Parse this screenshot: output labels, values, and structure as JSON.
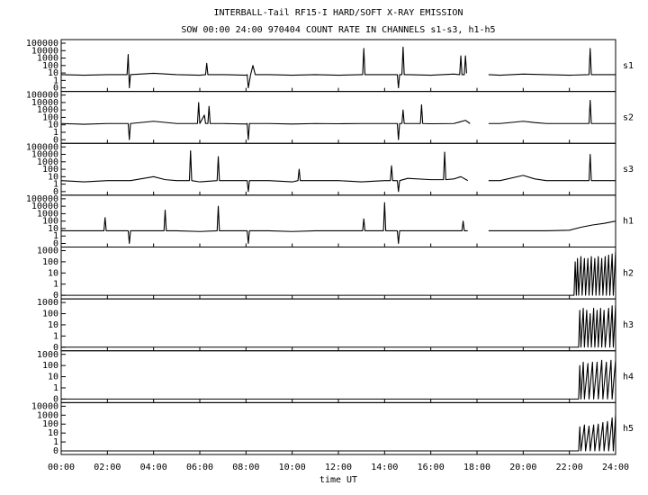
{
  "chart_data": {
    "type": "line",
    "title": "INTERBALL-Tail RF15-I HARD/SOFT X-RAY EMISSION",
    "subtitle": "SOW 00:00 24:00 970404  COUNT RATE IN CHANNELS s1-s3, h1-h5",
    "x_label": "time UT",
    "xlim": [
      0,
      24
    ],
    "xticks": [
      {
        "value": 0,
        "label": "00:00"
      },
      {
        "value": 2,
        "label": "02:00"
      },
      {
        "value": 4,
        "label": "04:00"
      },
      {
        "value": 6,
        "label": "06:00"
      },
      {
        "value": 8,
        "label": "08:00"
      },
      {
        "value": 10,
        "label": "10:00"
      },
      {
        "value": 12,
        "label": "12:00"
      },
      {
        "value": 14,
        "label": "14:00"
      },
      {
        "value": 16,
        "label": "16:00"
      },
      {
        "value": 18,
        "label": "18:00"
      },
      {
        "value": 20,
        "label": "20:00"
      },
      {
        "value": 22,
        "label": "22:00"
      },
      {
        "value": 24,
        "label": "24:00"
      }
    ],
    "log_scale": true,
    "color": "#000000",
    "panels": [
      {
        "label": "s1",
        "ylim": [
          0.1,
          100000
        ],
        "yticks": [
          {
            "value": 0.1,
            "label": "0"
          },
          1,
          10,
          100,
          1000,
          10000,
          100000
        ],
        "x": [
          0,
          1,
          2,
          2.85,
          2.9,
          2.95,
          3,
          4,
          5,
          6,
          6.25,
          6.3,
          6.35,
          7,
          8,
          8.05,
          8.1,
          8.2,
          8.3,
          8.4,
          9,
          10,
          11,
          12,
          13,
          13.05,
          13.1,
          13.15,
          14,
          14.55,
          14.6,
          14.65,
          14.75,
          14.8,
          14.85,
          15,
          16,
          17,
          17.25,
          17.3,
          17.35,
          17.45,
          17.5,
          17.55,
          17.7,
          18.5,
          19,
          20,
          21,
          22,
          22.85,
          22.9,
          22.95,
          24
        ],
        "values": [
          6,
          5,
          6,
          6,
          3000,
          0.1,
          6,
          9,
          6,
          5,
          6,
          200,
          6,
          6,
          5,
          6,
          0.1,
          6,
          100,
          6,
          6,
          5,
          6,
          5,
          6,
          6,
          20000,
          6,
          6,
          6,
          0.1,
          6,
          6,
          30000,
          6,
          6,
          5,
          7,
          6,
          2000,
          6,
          6,
          2000,
          9,
          null,
          6,
          5,
          7,
          6,
          5,
          6,
          20000,
          6,
          6
        ]
      },
      {
        "label": "s2",
        "ylim": [
          0.1,
          100000
        ],
        "yticks": [
          {
            "value": 0.1,
            "label": "0"
          },
          1,
          10,
          100,
          1000,
          10000,
          100000
        ],
        "x": [
          0,
          1,
          2,
          2.9,
          2.95,
          3,
          4,
          5,
          5.9,
          5.95,
          6,
          6.2,
          6.25,
          6.35,
          6.4,
          6.45,
          7,
          8,
          8.05,
          8.1,
          8.15,
          9,
          10,
          11,
          12,
          13,
          14,
          14.55,
          14.6,
          14.65,
          14.75,
          14.8,
          14.85,
          15.55,
          15.6,
          15.65,
          16,
          17,
          17.5,
          17.7,
          17.75,
          18.5,
          19,
          20,
          20.5,
          21,
          22,
          22.85,
          22.9,
          22.95,
          24
        ],
        "values": [
          15,
          12,
          15,
          15,
          0.1,
          15,
          30,
          15,
          15,
          10000,
          15,
          200,
          15,
          15,
          3000,
          15,
          15,
          13,
          15,
          0.1,
          15,
          15,
          13,
          15,
          14,
          15,
          15,
          15,
          0.1,
          15,
          15,
          1000,
          15,
          15,
          5000,
          15,
          14,
          15,
          40,
          15,
          null,
          15,
          15,
          30,
          20,
          15,
          15,
          15,
          20000,
          15,
          15
        ]
      },
      {
        "label": "s3",
        "ylim": [
          0.1,
          100000
        ],
        "yticks": [
          {
            "value": 0.1,
            "label": "0"
          },
          1,
          10,
          100,
          1000,
          10000,
          100000
        ],
        "x": [
          0,
          1,
          2,
          3,
          4,
          4.5,
          5,
          5.55,
          5.6,
          5.65,
          6,
          6.75,
          6.8,
          6.85,
          7,
          8,
          8.05,
          8.1,
          8.15,
          9,
          10,
          10.25,
          10.3,
          10.35,
          11,
          12,
          13,
          14,
          14.25,
          14.3,
          14.35,
          14.55,
          14.6,
          14.65,
          15,
          16,
          16.55,
          16.6,
          16.65,
          17,
          17.3,
          17.6,
          17.7,
          18.5,
          19,
          20,
          20.5,
          21,
          22,
          22.85,
          22.9,
          22.95,
          24
        ],
        "values": [
          3,
          2,
          3,
          3,
          10,
          4,
          3,
          3,
          30000,
          3,
          2,
          3,
          5000,
          3,
          3,
          3,
          3,
          0.1,
          3,
          3,
          2,
          3,
          100,
          3,
          3,
          3,
          2,
          3,
          3,
          300,
          3,
          3,
          0.1,
          3,
          6,
          4,
          4,
          20000,
          4,
          5,
          10,
          3,
          null,
          3,
          3,
          15,
          5,
          3,
          3,
          3,
          10000,
          3,
          3
        ]
      },
      {
        "label": "h1",
        "ylim": [
          0.1,
          100000
        ],
        "yticks": [
          {
            "value": 0.1,
            "label": "0"
          },
          1,
          10,
          100,
          1000,
          10000,
          100000
        ],
        "x": [
          0,
          1,
          1.85,
          1.9,
          1.95,
          2.9,
          2.95,
          3,
          4,
          4.45,
          4.5,
          4.55,
          5,
          6,
          6.75,
          6.8,
          6.85,
          7,
          8,
          8.05,
          8.1,
          8.15,
          9,
          10,
          11,
          12,
          13,
          13.05,
          13.1,
          13.15,
          13.95,
          14,
          14.05,
          14.55,
          14.6,
          14.65,
          15,
          16,
          17,
          17.35,
          17.4,
          17.45,
          17.6,
          17.7,
          18.5,
          19,
          20,
          21,
          22,
          22.5,
          23,
          23.5,
          24
        ],
        "values": [
          5,
          5,
          5,
          300,
          5,
          5,
          0.1,
          5,
          5,
          5,
          3000,
          5,
          5,
          4,
          5,
          10000,
          5,
          5,
          5,
          5,
          0.1,
          5,
          5,
          4,
          5,
          5,
          5,
          5,
          200,
          5,
          5,
          30000,
          5,
          5,
          0.1,
          5,
          5,
          5,
          5,
          5,
          100,
          5,
          5,
          null,
          5,
          5,
          5,
          5,
          6,
          15,
          30,
          50,
          100
        ]
      },
      {
        "label": "h2",
        "ylim": [
          0.1,
          1000
        ],
        "yticks": [
          {
            "value": 0.1,
            "label": "0"
          },
          1,
          10,
          100,
          1000
        ],
        "x": [
          0,
          22.2,
          22.25,
          22.3,
          22.35,
          22.4,
          22.5,
          22.55,
          22.65,
          22.7,
          22.8,
          22.85,
          22.95,
          23,
          23.1,
          23.15,
          23.25,
          23.3,
          23.4,
          23.45,
          23.55,
          23.6,
          23.7,
          23.75,
          23.85,
          23.9,
          24
        ],
        "values": [
          0.1,
          0.1,
          100,
          0.1,
          200,
          0.1,
          300,
          0.1,
          200,
          0.1,
          200,
          0.1,
          300,
          0.1,
          200,
          0.1,
          300,
          0.1,
          200,
          0.1,
          300,
          0.1,
          400,
          0.1,
          500,
          0.1,
          800
        ]
      },
      {
        "label": "h3",
        "ylim": [
          0.1,
          1000
        ],
        "yticks": [
          {
            "value": 0.1,
            "label": "0"
          },
          1,
          10,
          100,
          1000
        ],
        "x": [
          0,
          22.4,
          22.45,
          22.5,
          22.6,
          22.65,
          22.75,
          22.8,
          22.9,
          22.95,
          23.05,
          23.1,
          23.2,
          23.25,
          23.35,
          23.4,
          23.5,
          23.55,
          23.7,
          23.75,
          23.85,
          23.9,
          24
        ],
        "values": [
          0.1,
          0.1,
          200,
          0.1,
          300,
          0.1,
          200,
          0.1,
          100,
          0.1,
          300,
          0.1,
          200,
          0.1,
          300,
          0.1,
          200,
          0.1,
          300,
          0.1,
          500,
          0.1,
          600
        ]
      },
      {
        "label": "h4",
        "ylim": [
          0.1,
          1000
        ],
        "yticks": [
          {
            "value": 0.1,
            "label": "0"
          },
          1,
          10,
          100,
          1000
        ],
        "x": [
          0,
          22.4,
          22.45,
          22.5,
          22.6,
          22.65,
          22.8,
          22.85,
          23,
          23.05,
          23.2,
          23.25,
          23.4,
          23.45,
          23.6,
          23.65,
          23.8,
          23.85,
          24
        ],
        "values": [
          0.1,
          0.1,
          100,
          0.1,
          200,
          0.1,
          150,
          0.1,
          200,
          0.1,
          200,
          0.1,
          300,
          0.1,
          200,
          0.1,
          300,
          0.1,
          300
        ]
      },
      {
        "label": "h5",
        "ylim": [
          0.1,
          10000
        ],
        "yticks": [
          {
            "value": 0.1,
            "label": "0"
          },
          1,
          10,
          100,
          1000,
          10000
        ],
        "x": [
          0,
          22.4,
          22.45,
          22.5,
          22.65,
          22.7,
          22.85,
          22.9,
          23.05,
          23.1,
          23.25,
          23.3,
          23.45,
          23.5,
          23.65,
          23.7,
          23.85,
          23.9,
          24
        ],
        "values": [
          0.1,
          0.1,
          50,
          0.1,
          80,
          0.1,
          60,
          0.1,
          80,
          0.1,
          100,
          0.1,
          150,
          0.1,
          200,
          0.1,
          500,
          0.1,
          1000
        ]
      }
    ]
  }
}
